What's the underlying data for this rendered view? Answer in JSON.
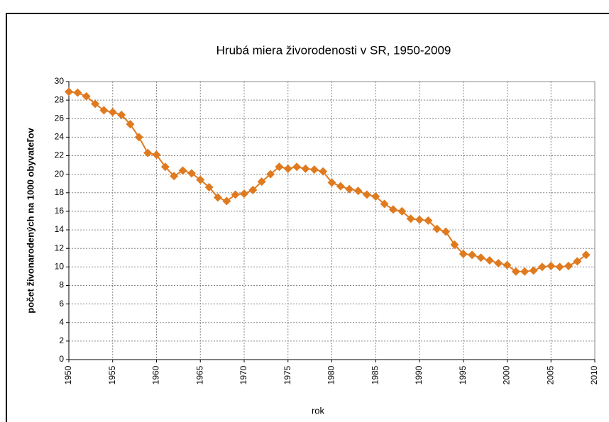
{
  "chart_data": {
    "type": "line",
    "title": "Hrubá miera živorodenosti v SR, 1950-2009",
    "xlabel": "rok",
    "ylabel": "počet živonarodených na 1000 obyvateľov",
    "x": [
      1950,
      1951,
      1952,
      1953,
      1954,
      1955,
      1956,
      1957,
      1958,
      1959,
      1960,
      1961,
      1962,
      1963,
      1964,
      1965,
      1966,
      1967,
      1968,
      1969,
      1970,
      1971,
      1972,
      1973,
      1974,
      1975,
      1976,
      1977,
      1978,
      1979,
      1980,
      1981,
      1982,
      1983,
      1984,
      1985,
      1986,
      1987,
      1988,
      1989,
      1990,
      1991,
      1992,
      1993,
      1994,
      1995,
      1996,
      1997,
      1998,
      1999,
      2000,
      2001,
      2002,
      2003,
      2004,
      2005,
      2006,
      2007,
      2008,
      2009
    ],
    "series": [
      {
        "color": "#e07a1f",
        "values": [
          28.9,
          28.8,
          28.4,
          27.6,
          26.9,
          26.7,
          26.4,
          25.4,
          24.0,
          22.3,
          22.1,
          20.8,
          19.8,
          20.4,
          20.1,
          19.4,
          18.6,
          17.5,
          17.1,
          17.8,
          17.9,
          18.3,
          19.2,
          20.0,
          20.8,
          20.6,
          20.8,
          20.6,
          20.5,
          20.3,
          19.1,
          18.7,
          18.4,
          18.2,
          17.8,
          17.6,
          16.8,
          16.2,
          16.0,
          15.2,
          15.1,
          15.0,
          14.1,
          13.8,
          12.4,
          11.4,
          11.3,
          11.0,
          10.7,
          10.4,
          10.2,
          9.5,
          9.5,
          9.6,
          10.0,
          10.1,
          10.0,
          10.1,
          10.6,
          11.3
        ]
      }
    ],
    "xlim": [
      1950,
      2010
    ],
    "xticks": [
      1950,
      1955,
      1960,
      1965,
      1970,
      1975,
      1980,
      1985,
      1990,
      1995,
      2000,
      2005,
      2010
    ],
    "ylim": [
      0,
      30
    ],
    "yticks": [
      0,
      2,
      4,
      6,
      8,
      10,
      12,
      14,
      16,
      18,
      20,
      22,
      24,
      26,
      28,
      30
    ],
    "grid": true
  }
}
